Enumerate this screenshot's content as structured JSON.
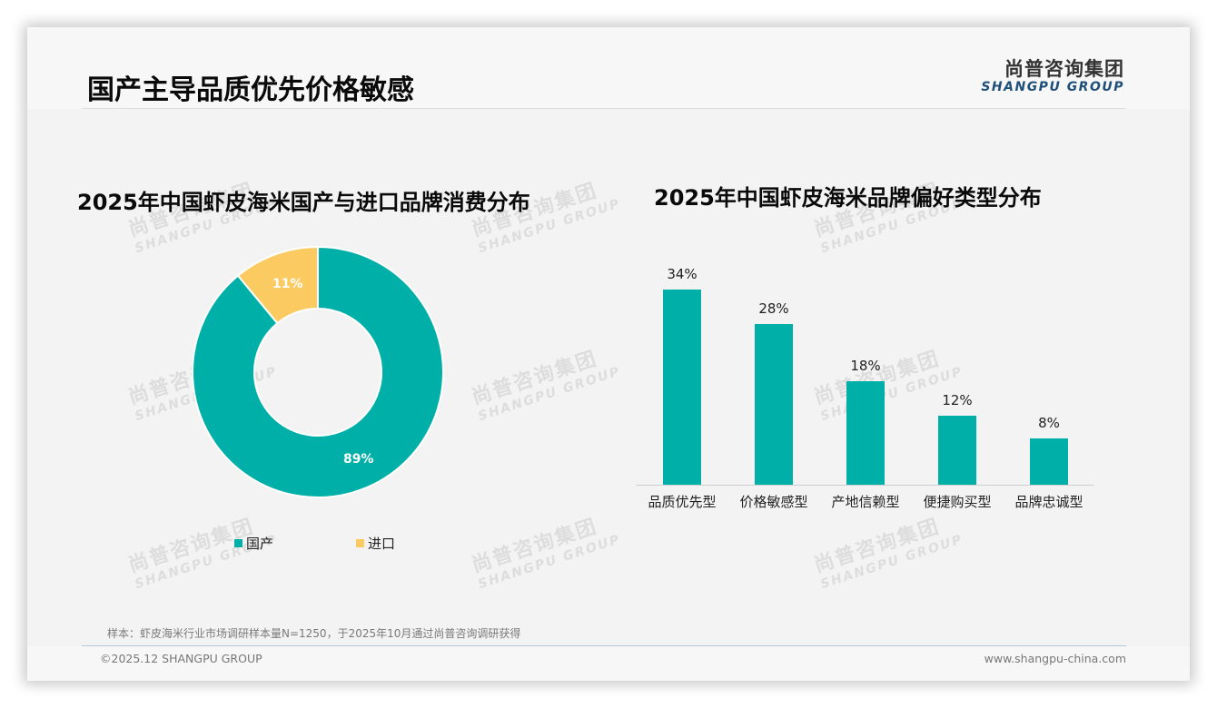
{
  "header": {
    "title": "国产主导品质优先价格敏感",
    "logo_cn": "尚普咨询集团",
    "logo_en": "SHANGPU GROUP"
  },
  "watermark": {
    "cn": "尚普咨询集团",
    "en": "SHANGPU GROUP"
  },
  "colors": {
    "teal": "#00b0a8",
    "yellow": "#fbcb62",
    "logo_blue": "#1f4e79"
  },
  "left_chart": {
    "title": "2025年中国虾皮海米国产与进口品牌消费分布",
    "labels": [
      "89%",
      "11%"
    ],
    "legend": [
      {
        "label": "国产",
        "color": "#00b0a8"
      },
      {
        "label": "进口",
        "color": "#fbcb62"
      }
    ]
  },
  "right_chart": {
    "title": "2025年中国虾皮海米品牌偏好类型分布",
    "values_labels": [
      "34%",
      "28%",
      "18%",
      "12%",
      "8%"
    ],
    "categories": [
      "品质优先型",
      "价格敏感型",
      "产地信赖型",
      "便捷购买型",
      "品牌忠诚型"
    ]
  },
  "chart_data": [
    {
      "type": "pie",
      "title": "2025年中国虾皮海米国产与进口品牌消费分布",
      "donut": true,
      "categories": [
        "国产",
        "进口"
      ],
      "values": [
        89,
        11
      ],
      "unit": "%",
      "colors": [
        "#00b0a8",
        "#fbcb62"
      ],
      "legend_position": "bottom"
    },
    {
      "type": "bar",
      "title": "2025年中国虾皮海米品牌偏好类型分布",
      "categories": [
        "品质优先型",
        "价格敏感型",
        "产地信赖型",
        "便捷购买型",
        "品牌忠诚型"
      ],
      "values": [
        34,
        28,
        18,
        12,
        8
      ],
      "unit": "%",
      "xlabel": "",
      "ylabel": "",
      "ylim": [
        0,
        40
      ],
      "grid": false,
      "color": "#00b0a8"
    }
  ],
  "footer": {
    "sample_note": "样本：虾皮海米行业市场调研样本量N=1250，于2025年10月通过尚普咨询调研获得",
    "copyright": "©2025.12 SHANGPU GROUP",
    "website": "www.shangpu-china.com"
  }
}
